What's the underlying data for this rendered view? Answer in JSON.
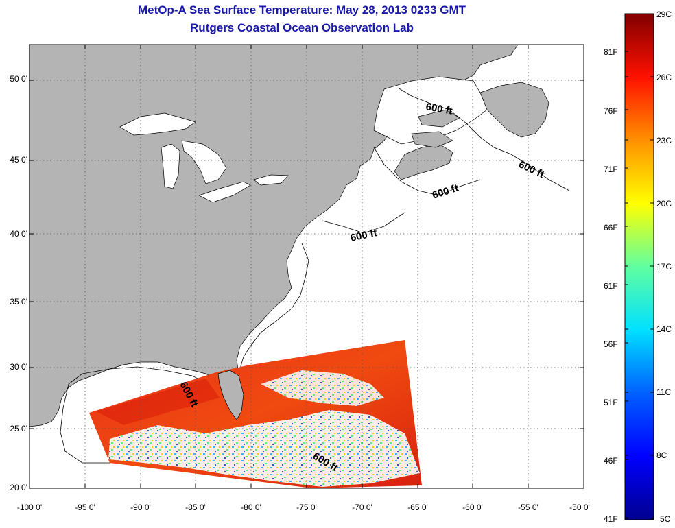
{
  "header": {
    "title": "MetOp-A Sea Surface Temperature:  May 28, 2013 0233 GMT",
    "subtitle": "Rutgers Coastal Ocean Observation Lab"
  },
  "map": {
    "lon_range": [
      -100,
      -50
    ],
    "lat_range": [
      20,
      52.5
    ],
    "x_ticks": [
      "-100 0'",
      "-95 0'",
      "-90 0'",
      "-85 0'",
      "-80 0'",
      "-75 0'",
      "-70 0'",
      "-65 0'",
      "-60 0'",
      "-55 0'",
      "-50 0'"
    ],
    "y_ticks": [
      "50 0'",
      "45 0'",
      "40 0'",
      "35 0'",
      "30 0'",
      "25 0'",
      "20 0'"
    ],
    "isobath_labels": [
      "600 ft",
      "600 ft",
      "600 ft",
      "600 ft",
      "600 ft",
      "600 ft"
    ],
    "land_color": "#b4b4b4",
    "ocean_color": "#ffffff"
  },
  "colorbar": {
    "celsius": [
      "29C",
      "26C",
      "23C",
      "20C",
      "17C",
      "14C",
      "11C",
      "8C",
      "5C"
    ],
    "fahrenheit": [
      "81F",
      "76F",
      "71F",
      "66F",
      "61F",
      "56F",
      "51F",
      "46F",
      "41F"
    ],
    "colors": [
      "#800000",
      "#ff0000",
      "#ff8000",
      "#ffff00",
      "#80ff80",
      "#00ffff",
      "#0080ff",
      "#0000ff",
      "#00008f"
    ]
  }
}
